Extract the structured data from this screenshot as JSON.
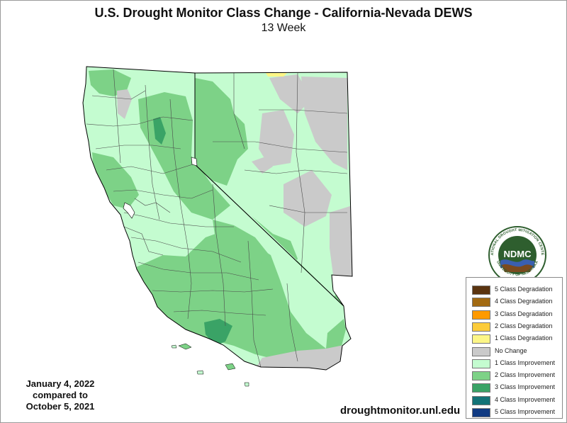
{
  "title": "U.S. Drought Monitor Class Change - California-Nevada DEWS",
  "subtitle": "13 Week",
  "dates": {
    "line1": "January 4, 2022",
    "line2": "compared to",
    "line3": "October 5, 2021"
  },
  "source_url": "droughtmonitor.unl.edu",
  "logo": {
    "center_text": "NDMC",
    "ring_text": "NATIONAL DROUGHT MITIGATION CENTER",
    "bottom_text": "UNIVERSITY OF NEBRASKA"
  },
  "legend": [
    {
      "label": "5 Class Degradation",
      "color": "#5a3410"
    },
    {
      "label": "4 Class Degradation",
      "color": "#a26a12"
    },
    {
      "label": "3 Class Degradation",
      "color": "#ff9a00"
    },
    {
      "label": "2 Class Degradation",
      "color": "#fccc3a"
    },
    {
      "label": "1 Class Degradation",
      "color": "#fcf687"
    },
    {
      "label": "No Change",
      "color": "#cacaca"
    },
    {
      "label": "1 Class Improvement",
      "color": "#c4fcd0"
    },
    {
      "label": "2 Class Improvement",
      "color": "#7dd287"
    },
    {
      "label": "3 Class Improvement",
      "color": "#3aa366"
    },
    {
      "label": "4 Class Improvement",
      "color": "#137377"
    },
    {
      "label": "5 Class Improvement",
      "color": "#103a82"
    }
  ],
  "colors": {
    "base": "#c4fcd0",
    "improve2": "#7dd287",
    "improve3": "#3aa366",
    "no_change": "#cacaca",
    "degrade1": "#fcf687",
    "county_line": "#4a4a4a",
    "state_line": "#000000"
  }
}
